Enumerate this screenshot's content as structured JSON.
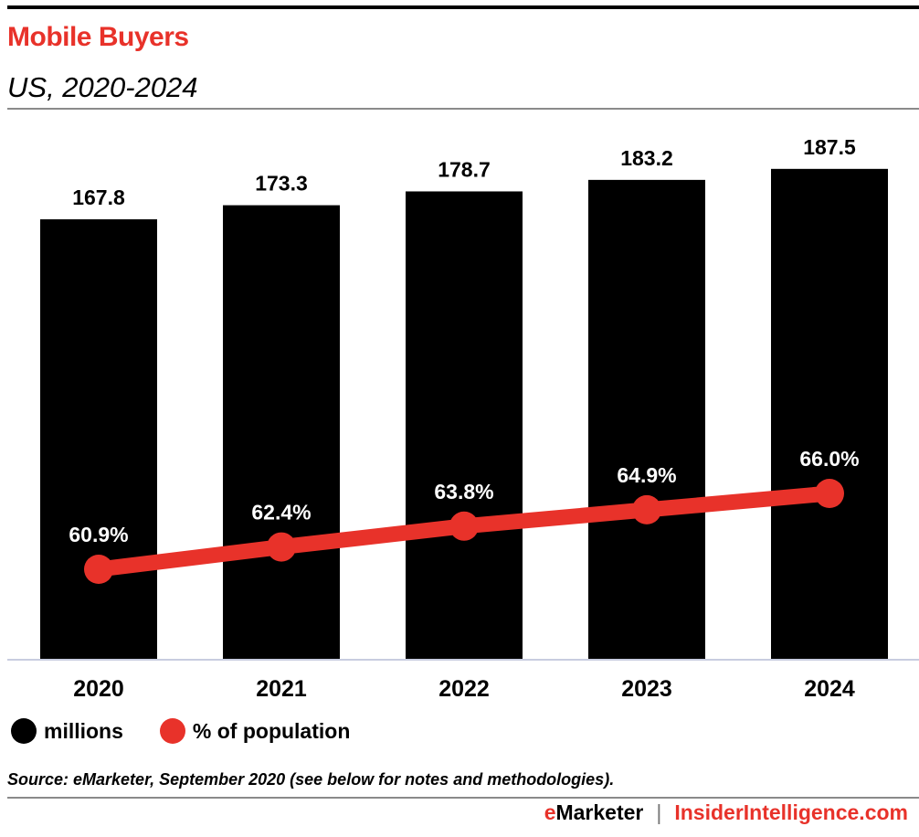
{
  "header": {
    "title": "Mobile Buyers",
    "subtitle": "US, 2020-2024"
  },
  "chart_data": {
    "type": "bar",
    "title": "Mobile Buyers",
    "subtitle": "US, 2020-2024",
    "categories": [
      "2020",
      "2021",
      "2022",
      "2023",
      "2024"
    ],
    "series": [
      {
        "name": "millions",
        "type": "bar",
        "color": "#000000",
        "values": [
          167.8,
          173.3,
          178.7,
          183.2,
          187.5
        ],
        "labels": [
          "167.8",
          "173.3",
          "178.7",
          "183.2",
          "187.5"
        ]
      },
      {
        "name": "% of population",
        "type": "line",
        "color": "#e8322a",
        "values": [
          60.9,
          62.4,
          63.8,
          64.9,
          66.0
        ],
        "labels": [
          "60.9%",
          "62.4%",
          "63.8%",
          "64.9%",
          "66.0%"
        ]
      }
    ],
    "xlabel": "",
    "ylabel": "",
    "ylim": [
      0,
      200
    ],
    "y2lim": [
      0,
      100
    ],
    "grid": false,
    "legend": "bottom-left"
  },
  "legend": {
    "items": [
      {
        "label": "millions",
        "color": "#000000"
      },
      {
        "label": "% of population",
        "color": "#e8322a"
      }
    ]
  },
  "source": "Source: eMarketer, September 2020 (see below for notes and methodologies).",
  "footer": {
    "brand_e": "e",
    "brand_rest": "Marketer",
    "separator": "|",
    "site": "InsiderIntelligence.com"
  }
}
